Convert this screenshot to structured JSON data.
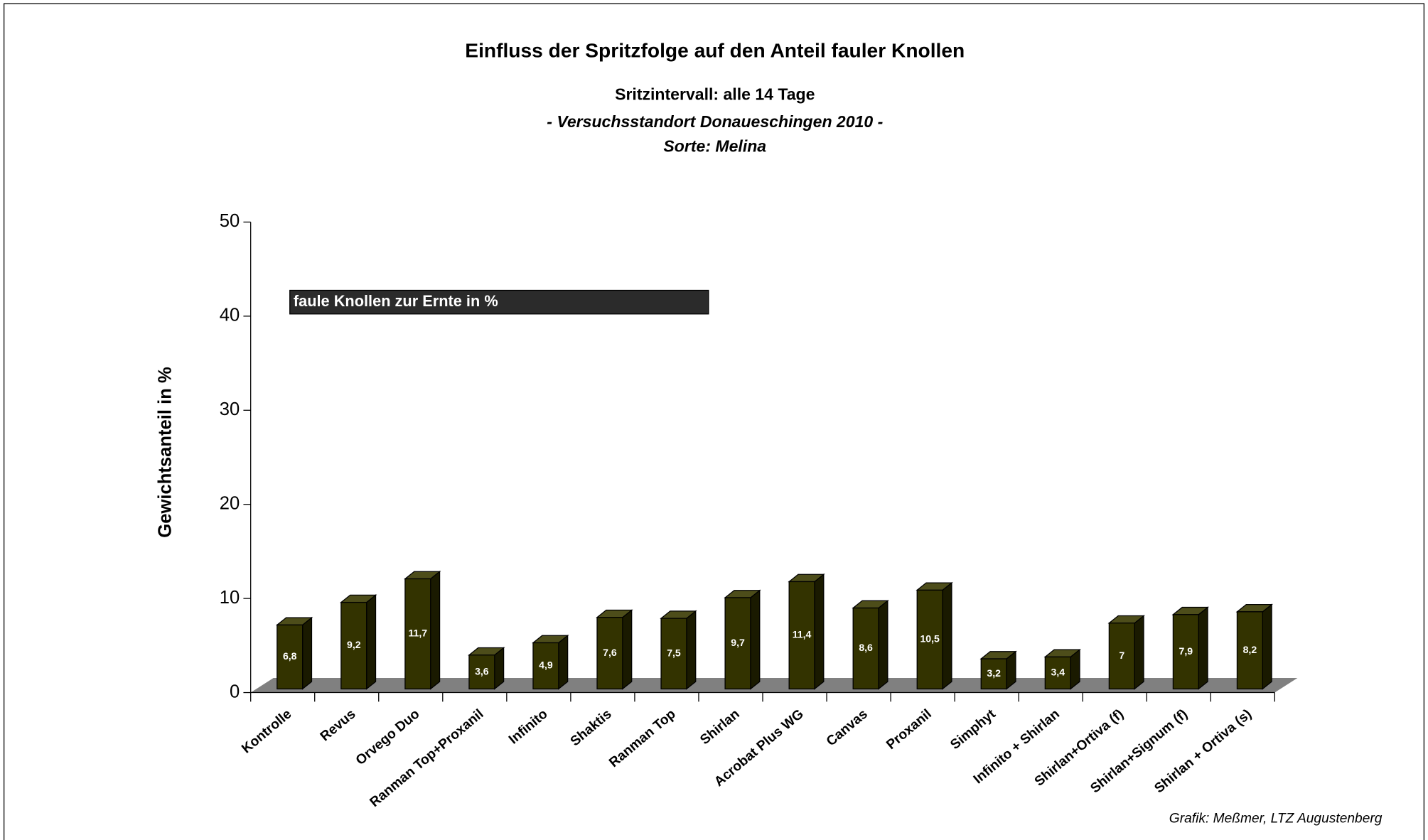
{
  "chart_data": {
    "type": "bar",
    "title": "Einfluss der Spritzfolge auf den Anteil fauler Knollen",
    "subtitle": "Sritzintervall: alle 14 Tage",
    "annotations": [
      "- Versuchsstandort Donaueschingen 2010 -",
      "Sorte: Melina"
    ],
    "source": "Grafik: Meßmer, LTZ Augustenberg",
    "ylabel": "Gewichtsanteil in %",
    "categories": [
      "Kontrolle",
      "Revus",
      "Orvego Duo",
      "Ranman Top+Proxanil",
      "Infinito",
      "Shaktis",
      "Ranman Top",
      "Shirlan",
      "Acrobat Plus WG",
      "Canvas",
      "Proxanil",
      "Simphyt",
      "Infinito + Shirlan",
      "Shirlan+Ortiva (f)",
      "Shirlan+Signum (f)",
      "Shirlan + Ortiva (s)"
    ],
    "series": [
      {
        "name": "faule Knollen zur Ernte in %",
        "color": "#333300",
        "values": [
          6.8,
          9.2,
          11.7,
          3.6,
          4.9,
          7.6,
          7.5,
          9.7,
          11.4,
          8.6,
          10.5,
          3.2,
          3.4,
          7,
          7.9,
          8.2
        ],
        "value_labels": [
          "6,8",
          "9,2",
          "11,7",
          "3,6",
          "4,9",
          "7,6",
          "7,5",
          "9,7",
          "11,4",
          "8,6",
          "10,5",
          "3,2",
          "3,4",
          "7",
          "7,9",
          "8,2"
        ]
      }
    ],
    "ylim": [
      0,
      50
    ],
    "yticks": [
      0,
      10,
      20,
      30,
      40,
      50
    ]
  }
}
